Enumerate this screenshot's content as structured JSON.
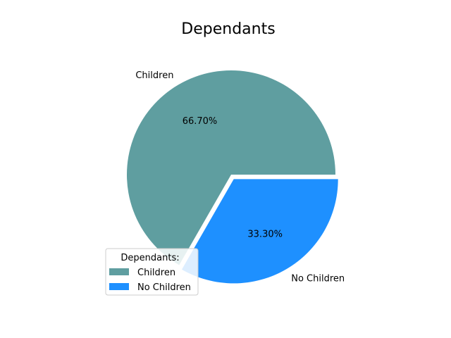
{
  "chart_data": {
    "type": "pie",
    "title": "Dependants",
    "categories": [
      "Children",
      "No Children"
    ],
    "values": [
      66.7,
      33.3
    ],
    "value_labels": [
      "66.70%",
      "33.30%"
    ],
    "colors": [
      "#5f9ea0",
      "#1e90ff"
    ],
    "exploded": [
      false,
      true
    ],
    "legend": {
      "title": "Dependants:",
      "entries": [
        "Children",
        "No Children"
      ],
      "placement": "lower-left"
    }
  }
}
